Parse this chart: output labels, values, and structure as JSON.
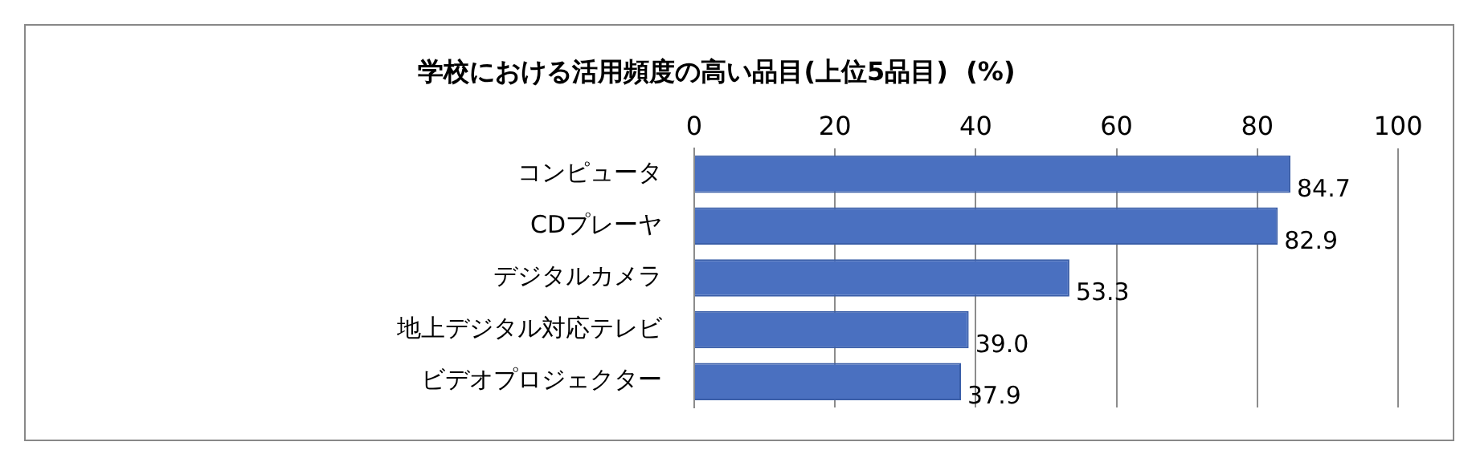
{
  "chart_data": {
    "type": "bar",
    "orientation": "horizontal",
    "title": "学校における活用頻度の高い品目(上位5品目)  (%)",
    "categories": [
      "コンピュータ",
      "CDプレーヤ",
      "デジタルカメラ",
      "地上デジタル対応テレビ",
      "ビデオプロジェクター"
    ],
    "values": [
      84.7,
      82.9,
      53.3,
      39.0,
      37.9
    ],
    "value_labels": [
      "84.7",
      "82.9",
      "53.3",
      "39.0",
      "37.9"
    ],
    "color": "#4a70c0",
    "xlim": [
      0,
      100
    ],
    "xticks": [
      0,
      20,
      40,
      60,
      80,
      100
    ],
    "grid": "x",
    "legend": false
  }
}
